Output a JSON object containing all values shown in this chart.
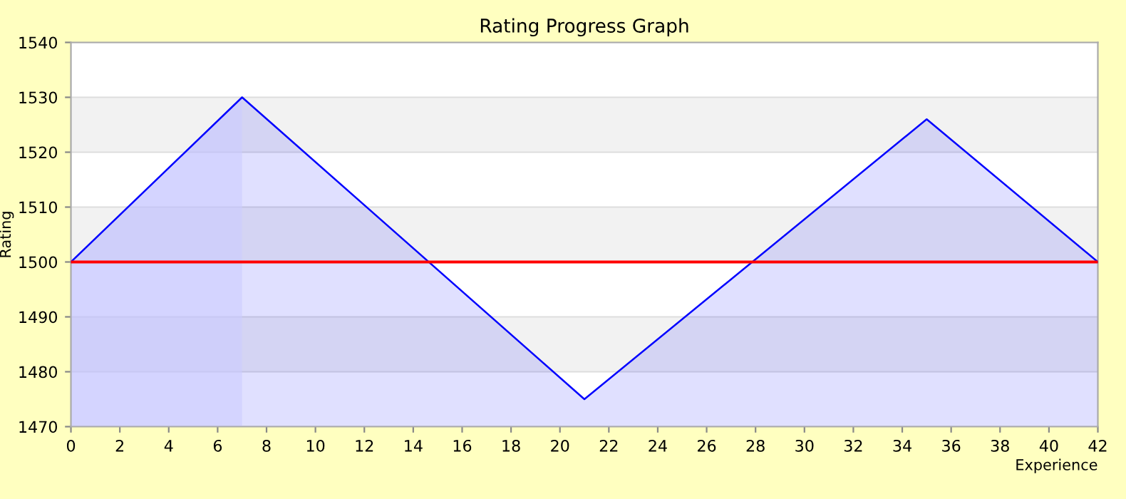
{
  "chart_data": {
    "type": "area",
    "title": "Rating Progress Graph",
    "xlabel": "Experience",
    "ylabel": "Rating",
    "x": [
      0,
      7,
      21,
      35,
      42
    ],
    "series": [
      {
        "color": "#0000ff",
        "values": [
          1500,
          1530,
          1475,
          1526,
          1500
        ]
      }
    ],
    "xlim": [
      0,
      42
    ],
    "ylim": [
      1470,
      1540
    ],
    "xticks": [
      0,
      2,
      4,
      6,
      8,
      10,
      12,
      14,
      16,
      18,
      20,
      22,
      24,
      26,
      28,
      30,
      32,
      34,
      36,
      38,
      40,
      42
    ],
    "yticks": [
      1470,
      1480,
      1490,
      1500,
      1510,
      1520,
      1530,
      1540
    ],
    "ref_lines": [
      {
        "axis": "y",
        "value": 1500,
        "color": "#ff0000"
      }
    ],
    "bands": [
      {
        "axis": "x",
        "from": 0,
        "to": 7,
        "color": "#ccccff"
      }
    ],
    "grid": "y"
  }
}
